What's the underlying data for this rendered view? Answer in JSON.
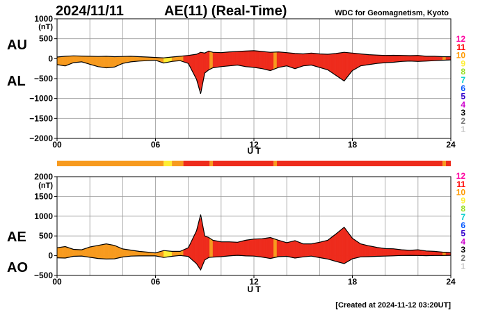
{
  "header": {
    "date": "2024/11/11",
    "title": "AE(11) (Real-Time)",
    "source": "WDC for Geomagnetism, Kyoto",
    "created": "[Created at 2024-11-12 03:20UT]"
  },
  "legend": {
    "levels": [
      "12",
      "11",
      "10",
      "9",
      "8",
      "7",
      "6",
      "5",
      "4",
      "3",
      "2",
      "1"
    ],
    "colors": [
      "#ff00a0",
      "#ff0000",
      "#ff9900",
      "#ffee33",
      "#99dd22",
      "#00cccc",
      "#0055ff",
      "#3300cc",
      "#cc00cc",
      "#000000",
      "#777777",
      "#cccccc"
    ]
  },
  "colors": {
    "level10": "#f79a1e",
    "level11": "#ee2b1c",
    "level9": "#ffee33",
    "line": "#000000",
    "grid": "#9a9a9a"
  },
  "chart_data": [
    {
      "type": "area",
      "name": "AU/AL",
      "left_labels": [
        "AU",
        "AL"
      ],
      "xlabel": "U T",
      "unit": "(nT)",
      "xlim": [
        0,
        24
      ],
      "ylim": [
        -2000,
        1000
      ],
      "xticks": [
        0,
        6,
        12,
        18,
        24
      ],
      "xtick_labels": [
        "00",
        "06",
        "12",
        "18",
        "24"
      ],
      "yticks": [
        1000,
        500,
        0,
        -500,
        -1000,
        -1500,
        -2000
      ],
      "ytick_labels": [
        "1000",
        "500",
        "0",
        "−500",
        "−1000",
        "−1500",
        "−2000"
      ],
      "series": [
        {
          "name": "AU",
          "x": [
            0,
            0.5,
            1,
            1.5,
            2,
            2.5,
            3,
            3.5,
            4,
            4.5,
            5,
            5.5,
            6,
            6.5,
            7,
            7.5,
            8,
            8.5,
            8.75,
            9,
            9.25,
            9.5,
            10,
            10.5,
            11,
            11.5,
            12,
            12.5,
            13,
            13.5,
            14,
            14.5,
            15,
            15.5,
            16,
            16.5,
            17,
            17.5,
            18,
            18.5,
            19,
            19.5,
            20,
            20.5,
            21,
            21.5,
            22,
            22.5,
            23,
            23.5,
            24
          ],
          "values": [
            40,
            60,
            70,
            65,
            60,
            55,
            60,
            50,
            55,
            60,
            50,
            40,
            30,
            20,
            40,
            60,
            80,
            110,
            160,
            140,
            190,
            160,
            150,
            170,
            180,
            190,
            200,
            180,
            160,
            170,
            150,
            130,
            120,
            140,
            120,
            110,
            130,
            160,
            140,
            120,
            100,
            90,
            80,
            85,
            80,
            75,
            80,
            60,
            60,
            50,
            50
          ]
        },
        {
          "name": "AL",
          "x": [
            0,
            0.5,
            1,
            1.5,
            2,
            2.5,
            3,
            3.5,
            4,
            4.5,
            5,
            5.5,
            6,
            6.5,
            7,
            7.5,
            8,
            8.5,
            8.75,
            9,
            9.25,
            9.5,
            10,
            10.5,
            11,
            11.5,
            12,
            12.5,
            13,
            13.5,
            14,
            14.5,
            15,
            15.5,
            16,
            16.5,
            17,
            17.5,
            18,
            18.5,
            19,
            19.5,
            20,
            20.5,
            21,
            21.5,
            22,
            22.5,
            23,
            23.5,
            24
          ],
          "values": [
            -150,
            -180,
            -100,
            -80,
            -140,
            -200,
            -230,
            -210,
            -120,
            -80,
            -60,
            -50,
            -40,
            -110,
            -70,
            -50,
            -120,
            -520,
            -880,
            -360,
            -280,
            -230,
            -200,
            -180,
            -160,
            -200,
            -220,
            -250,
            -300,
            -220,
            -180,
            -250,
            -180,
            -160,
            -220,
            -280,
            -420,
            -560,
            -300,
            -180,
            -150,
            -120,
            -100,
            -90,
            -70,
            -60,
            -70,
            -60,
            -50,
            -40,
            -30
          ]
        }
      ],
      "band": [
        {
          "from": 0,
          "to": 6.5,
          "level": "10"
        },
        {
          "from": 6.5,
          "to": 7.0,
          "level": "9"
        },
        {
          "from": 7.0,
          "to": 7.7,
          "level": "10"
        },
        {
          "from": 7.7,
          "to": 9.3,
          "level": "11"
        },
        {
          "from": 9.3,
          "to": 9.5,
          "level": "10"
        },
        {
          "from": 9.5,
          "to": 13.2,
          "level": "11"
        },
        {
          "from": 13.2,
          "to": 13.4,
          "level": "10"
        },
        {
          "from": 13.4,
          "to": 23.5,
          "level": "11"
        },
        {
          "from": 23.5,
          "to": 23.7,
          "level": "10"
        },
        {
          "from": 23.7,
          "to": 24,
          "level": "11"
        }
      ]
    },
    {
      "type": "area",
      "name": "AE/AO",
      "left_labels": [
        "AE",
        "AO"
      ],
      "xlabel": "U T",
      "unit": "(nT)",
      "xlim": [
        0,
        24
      ],
      "ylim": [
        -500,
        2000
      ],
      "xticks": [
        0,
        6,
        12,
        18,
        24
      ],
      "xtick_labels": [
        "00",
        "06",
        "12",
        "18",
        "24"
      ],
      "yticks": [
        2000,
        1500,
        1000,
        500,
        0,
        -500
      ],
      "ytick_labels": [
        "2000",
        "1500",
        "1000",
        "500",
        "0",
        "−500"
      ],
      "series": [
        {
          "name": "AE",
          "x": [
            0,
            0.5,
            1,
            1.5,
            2,
            2.5,
            3,
            3.5,
            4,
            4.5,
            5,
            5.5,
            6,
            6.5,
            7,
            7.5,
            8,
            8.5,
            8.75,
            9,
            9.25,
            9.5,
            10,
            10.5,
            11,
            11.5,
            12,
            12.5,
            13,
            13.5,
            14,
            14.5,
            15,
            15.5,
            16,
            16.5,
            17,
            17.5,
            18,
            18.5,
            19,
            19.5,
            20,
            20.5,
            21,
            21.5,
            22,
            22.5,
            23,
            23.5,
            24
          ],
          "values": [
            200,
            230,
            160,
            150,
            220,
            260,
            300,
            260,
            170,
            140,
            110,
            90,
            70,
            130,
            110,
            110,
            200,
            630,
            1040,
            500,
            460,
            390,
            350,
            350,
            340,
            390,
            420,
            430,
            460,
            390,
            330,
            380,
            300,
            300,
            340,
            390,
            550,
            720,
            440,
            300,
            250,
            210,
            180,
            175,
            150,
            135,
            150,
            120,
            110,
            90,
            80
          ]
        },
        {
          "name": "AO",
          "x": [
            0,
            0.5,
            1,
            1.5,
            2,
            2.5,
            3,
            3.5,
            4,
            4.5,
            5,
            5.5,
            6,
            6.5,
            7,
            7.5,
            8,
            8.5,
            8.75,
            9,
            9.25,
            9.5,
            10,
            10.5,
            11,
            11.5,
            12,
            12.5,
            13,
            13.5,
            14,
            14.5,
            15,
            15.5,
            16,
            16.5,
            17,
            17.5,
            18,
            18.5,
            19,
            19.5,
            20,
            20.5,
            21,
            21.5,
            22,
            22.5,
            23,
            23.5,
            24
          ],
          "values": [
            -55,
            -60,
            -15,
            -8,
            -40,
            -70,
            -85,
            -80,
            -33,
            -10,
            -5,
            -5,
            -5,
            -45,
            -15,
            5,
            -20,
            -205,
            -360,
            -110,
            -45,
            -35,
            -25,
            -5,
            10,
            -5,
            -10,
            -35,
            -70,
            -25,
            -15,
            -60,
            -30,
            -10,
            -50,
            -85,
            -145,
            -200,
            -80,
            -30,
            -25,
            -15,
            -10,
            -3,
            5,
            8,
            5,
            0,
            5,
            5,
            10
          ]
        }
      ]
    }
  ]
}
